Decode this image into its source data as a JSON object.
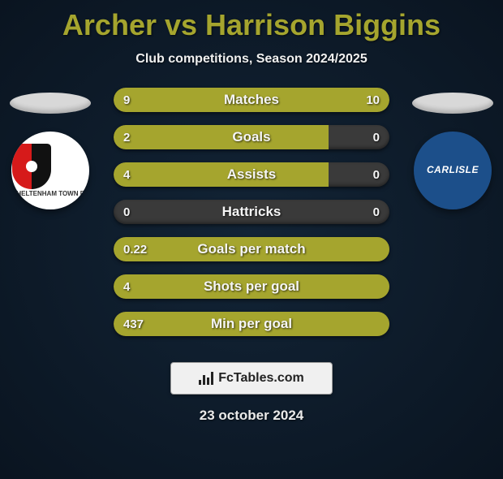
{
  "title": "Archer vs Harrison Biggins",
  "subtitle": "Club competitions, Season 2024/2025",
  "footer_site": "FcTables.com",
  "footer_date": "23 october 2024",
  "colors": {
    "accent": "#a5a52e",
    "bar_track": "#3a3a3a",
    "background": "#0b1a2a",
    "text": "#ffffff",
    "badge_left_bg": "#ffffff",
    "badge_right_bg": "#1c4f8a"
  },
  "player_left": {
    "name": "Archer",
    "club": "Cheltenham Town FC",
    "badge_text": "CHELTENHAM TOWN FC"
  },
  "player_right": {
    "name": "Harrison Biggins",
    "club": "Carlisle",
    "badge_text": "CARLISLE"
  },
  "stats": [
    {
      "label": "Matches",
      "left_val": "9",
      "right_val": "10",
      "left_pct": 47,
      "right_pct": 53
    },
    {
      "label": "Goals",
      "left_val": "2",
      "right_val": "0",
      "left_pct": 78,
      "right_pct": 0
    },
    {
      "label": "Assists",
      "left_val": "4",
      "right_val": "0",
      "left_pct": 78,
      "right_pct": 0
    },
    {
      "label": "Hattricks",
      "left_val": "0",
      "right_val": "0",
      "left_pct": 0,
      "right_pct": 0
    },
    {
      "label": "Goals per match",
      "left_val": "0.22",
      "right_val": "",
      "left_pct": 100,
      "right_pct": 0
    },
    {
      "label": "Shots per goal",
      "left_val": "4",
      "right_val": "",
      "left_pct": 100,
      "right_pct": 0
    },
    {
      "label": "Min per goal",
      "left_val": "437",
      "right_val": "",
      "left_pct": 100,
      "right_pct": 0
    }
  ]
}
